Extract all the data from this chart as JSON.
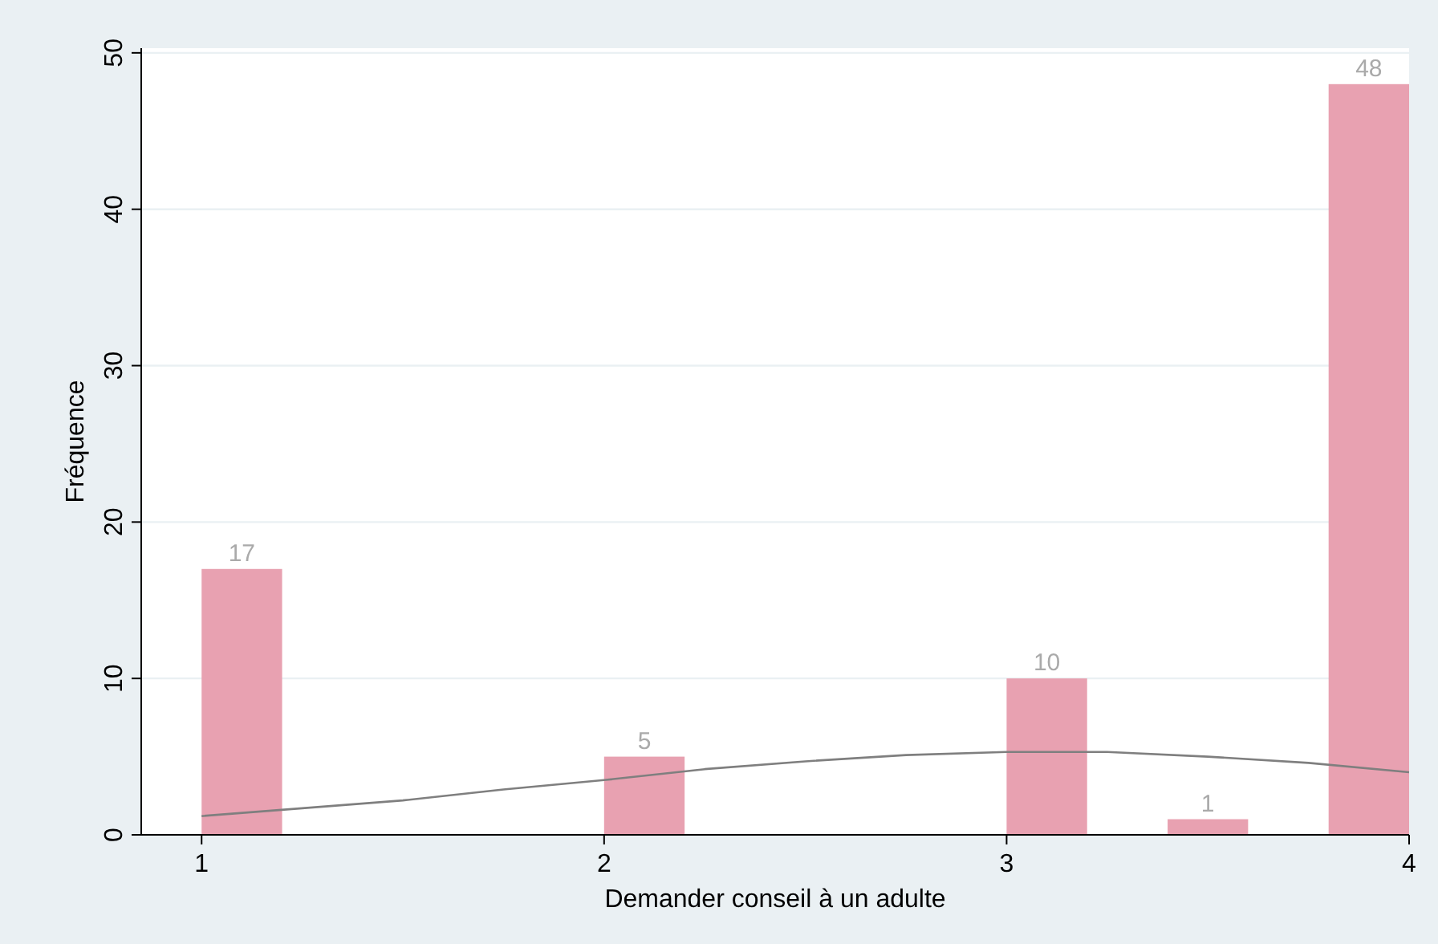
{
  "chart_data": {
    "type": "histogram",
    "xlabel": "Demander conseil à un adulte",
    "ylabel": "Fréquence",
    "bins": [
      1,
      1.2,
      1.4,
      1.6,
      1.8,
      2,
      2.2,
      2.4,
      2.6,
      2.8,
      3,
      3.2,
      3.4,
      3.6,
      3.8,
      4
    ],
    "series": [
      {
        "color": "#e8a1b1",
        "values": [
          17,
          0,
          0,
          0,
          0,
          5,
          0,
          0,
          0,
          0,
          10,
          0,
          1,
          0,
          48
        ],
        "value_labels": [
          "17",
          null,
          null,
          null,
          null,
          "5",
          null,
          null,
          null,
          null,
          "10",
          null,
          "1",
          null,
          "48"
        ]
      },
      {
        "type": "line",
        "color": "#7f7f7f",
        "x": [
          1,
          1.25,
          1.5,
          1.75,
          2,
          2.25,
          2.5,
          2.75,
          3,
          3.25,
          3.5,
          3.75,
          4
        ],
        "values": [
          1.2,
          1.7,
          2.2,
          2.9,
          3.5,
          4.2,
          4.7,
          5.1,
          5.3,
          5.3,
          5,
          4.6,
          4
        ]
      }
    ],
    "xlim": [
      0.85,
      4
    ],
    "xticks": [
      1,
      2,
      3,
      4
    ],
    "ylim": [
      0,
      50.3
    ],
    "yticks": [
      0,
      10,
      20,
      30,
      40,
      50
    ],
    "grid": "y"
  }
}
